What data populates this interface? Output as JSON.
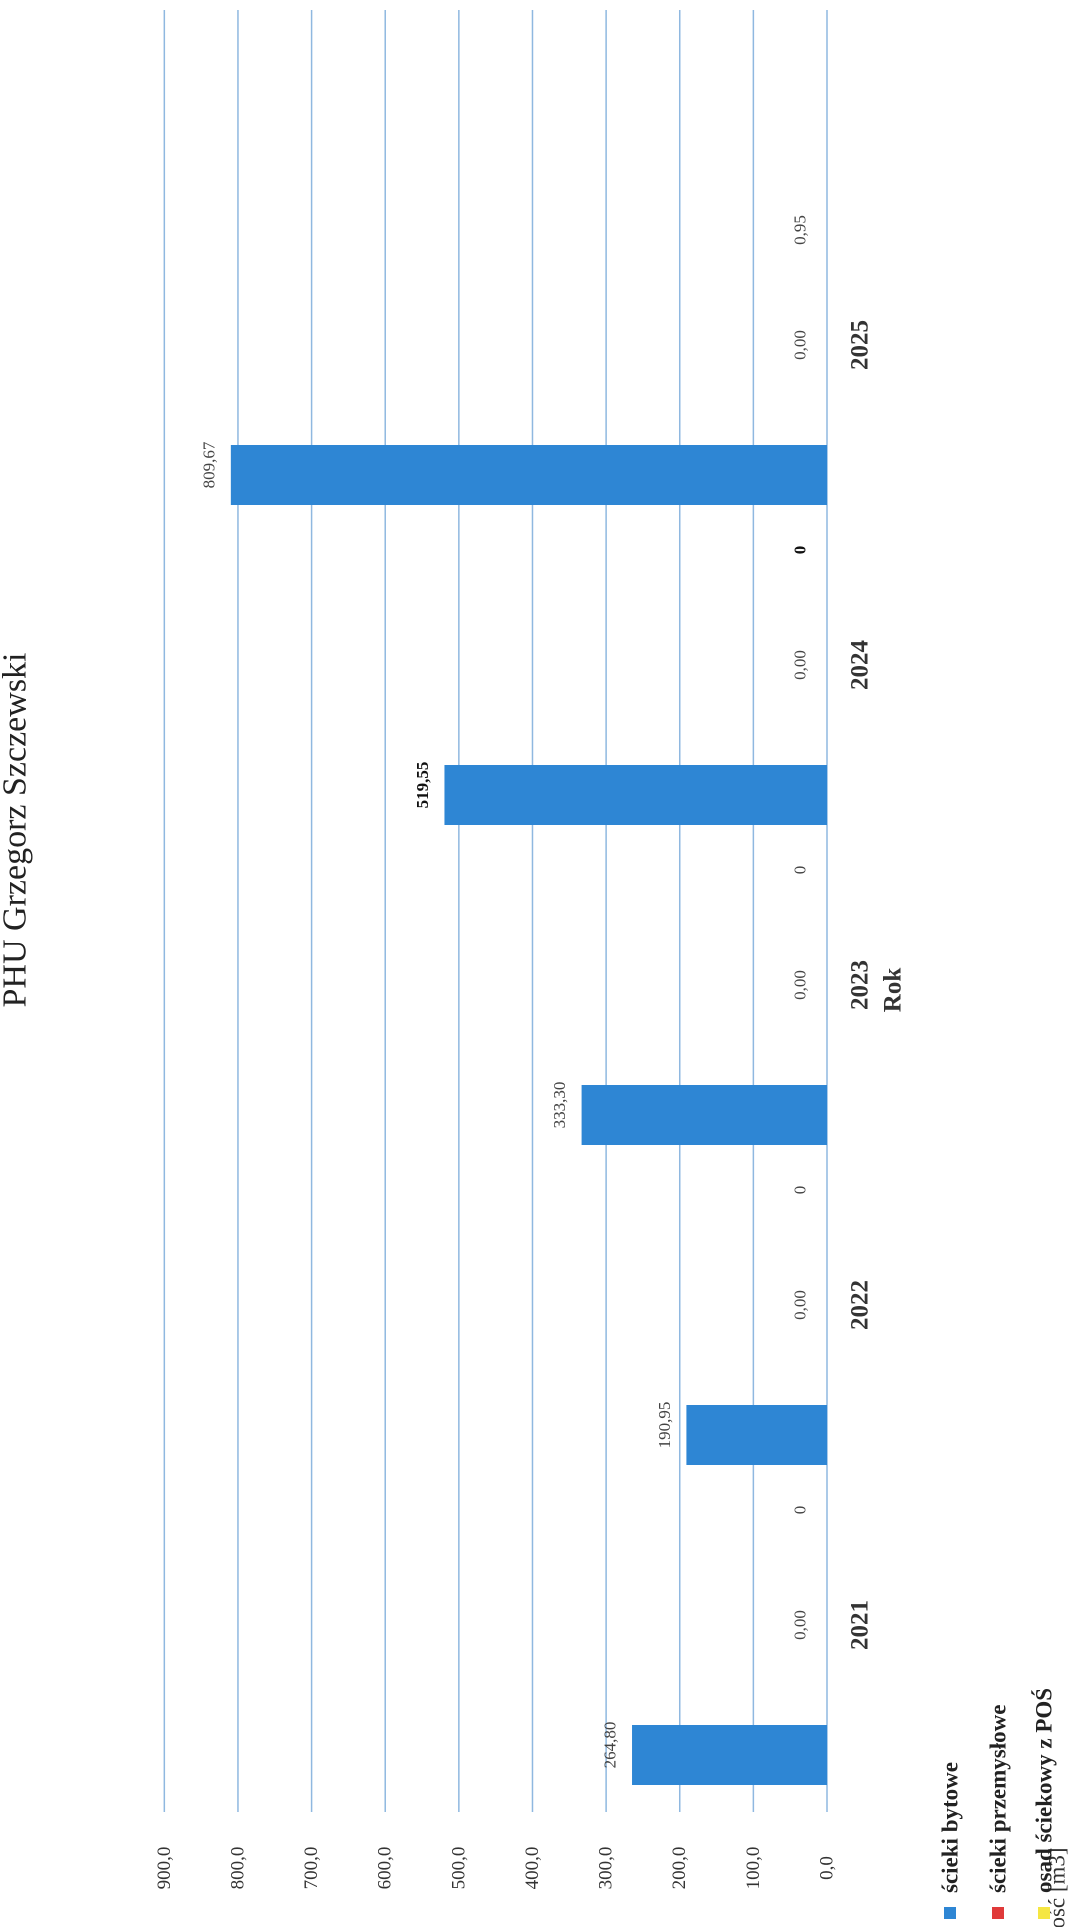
{
  "chart_data": {
    "type": "bar",
    "title": "PHU Grzegorz Szczewski",
    "xlabel": "Rok",
    "ylabel": "Ilość [m3]",
    "categories": [
      "2021",
      "2022",
      "2023",
      "2024",
      "2025"
    ],
    "ylim": [
      0,
      900
    ],
    "y_ticks": [
      "0,0",
      "100,0",
      "200,0",
      "300,0",
      "400,0",
      "500,0",
      "600,0",
      "700,0",
      "800,0",
      "900,0"
    ],
    "grid": true,
    "legend_position": "bottom-left",
    "series": [
      {
        "name": "ścieki bytowe",
        "color": "#2e86d4",
        "values": [
          264.8,
          190.95,
          333.3,
          519.55,
          809.67
        ],
        "labels": [
          "264,80",
          "190,95",
          "333,30",
          "519,55",
          "809,67"
        ]
      },
      {
        "name": "ścieki przemysłowe",
        "color": "#e03a3a",
        "values": [
          0,
          0,
          0,
          0,
          0
        ],
        "labels": [
          "0,00",
          "0,00",
          "0,00",
          "0,00",
          "0,00"
        ]
      },
      {
        "name": "osad ściekowy z POŚ",
        "color": "#f5e642",
        "values": [
          0,
          0,
          0,
          0,
          0.95
        ],
        "labels": [
          "0",
          "0",
          "0",
          "0",
          "0,95"
        ]
      }
    ]
  }
}
